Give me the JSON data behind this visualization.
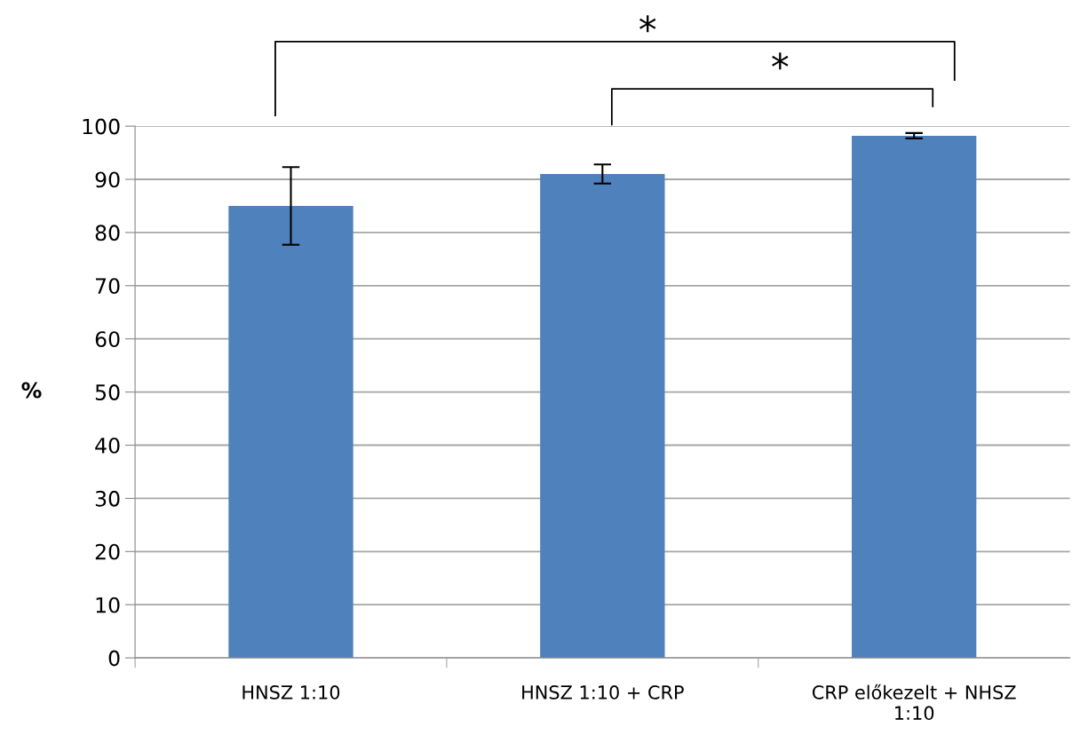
{
  "chart_data": {
    "type": "bar",
    "ylabel": "%",
    "categories": [
      "HNSZ 1:10",
      "HNSZ 1:10 + CRP",
      "CRP előkezelt + NHSZ 1:10"
    ],
    "values": [
      85,
      91,
      98.2
    ],
    "errors": [
      7.3,
      1.8,
      0.5
    ],
    "color": "#4f81bd",
    "ylim": [
      0,
      100
    ],
    "yticks": [
      0,
      10,
      20,
      30,
      40,
      50,
      60,
      70,
      80,
      90,
      100
    ],
    "grid": "y",
    "annotations": [
      "*",
      "*"
    ]
  }
}
